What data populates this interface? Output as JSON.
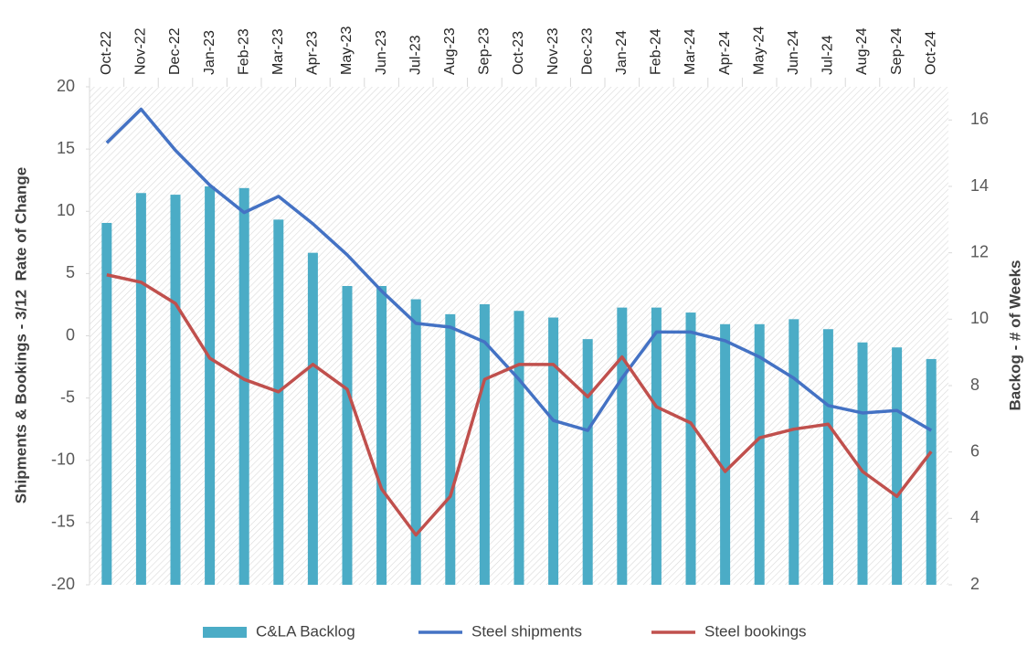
{
  "chart_data": {
    "type": "bar_line",
    "y_label": "Shipments & Bookings - 3/12  Rate of Change",
    "y2_label": "Backog - # of Weeks",
    "categories": [
      "Oct-22",
      "Nov-22",
      "Dec-22",
      "Jan-23",
      "Feb-23",
      "Mar-23",
      "Apr-23",
      "May-23",
      "Jun-23",
      "Jul-23",
      "Aug-23",
      "Sep-23",
      "Oct-23",
      "Nov-23",
      "Dec-23",
      "Jan-24",
      "Feb-24",
      "Mar-24",
      "Apr-24",
      "May-24",
      "Jun-24",
      "Jul-24",
      "Aug-24",
      "Sep-24",
      "Oct-24"
    ],
    "series": [
      {
        "name": "C&LA Backlog",
        "type": "bar",
        "axis": "y2",
        "color": "#4bacc6",
        "values": [
          12.9,
          13.8,
          13.75,
          14.0,
          13.95,
          13.0,
          12.0,
          11.0,
          11.0,
          10.6,
          10.15,
          10.45,
          10.25,
          10.05,
          9.4,
          10.35,
          10.35,
          10.2,
          9.85,
          9.85,
          10.0,
          9.7,
          9.3,
          9.15,
          8.8
        ]
      },
      {
        "name": "Steel shipments",
        "type": "line",
        "color": "#4472c4",
        "values": [
          15.5,
          18.2,
          14.9,
          12.1,
          9.9,
          11.2,
          9.0,
          6.5,
          3.6,
          1.0,
          0.7,
          -0.5,
          -3.5,
          -6.8,
          -7.6,
          -3.4,
          0.3,
          0.3,
          -0.4,
          -1.7,
          -3.4,
          -5.6,
          -6.2,
          -6.0,
          -7.6
        ]
      },
      {
        "name": "Steel bookings",
        "type": "line",
        "color": "#c0504d",
        "values": [
          4.9,
          4.3,
          2.6,
          -1.8,
          -3.5,
          -4.5,
          -2.3,
          -4.3,
          -12.3,
          -16.0,
          -12.9,
          -3.5,
          -2.3,
          -2.3,
          -4.9,
          -1.7,
          -5.7,
          -7.0,
          -10.9,
          -8.2,
          -7.5,
          -7.1,
          -10.9,
          -12.9,
          -9.3
        ]
      }
    ],
    "ylim": [
      -20,
      20
    ],
    "yticks": [
      -20,
      -15,
      -10,
      -5,
      0,
      5,
      10,
      15,
      20
    ],
    "y2lim": [
      2,
      17
    ],
    "y2ticks": [
      2,
      4,
      6,
      8,
      10,
      12,
      14,
      16
    ],
    "legend": "bottom"
  }
}
